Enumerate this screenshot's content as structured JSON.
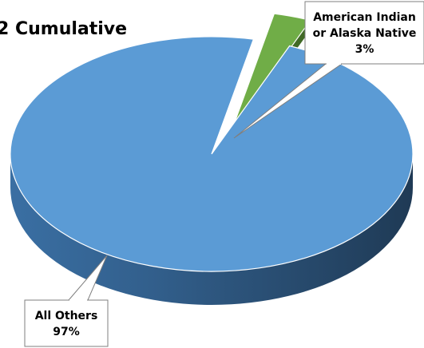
{
  "chart_data": {
    "type": "pie",
    "title": "2 Cumulative",
    "slices": [
      {
        "label_lines": [
          "American Indian",
          "or Alaska Native"
        ],
        "value_label": "3%",
        "value": 3,
        "color": "#70AD47"
      },
      {
        "label_lines": [
          "All Others"
        ],
        "value_label": "97%",
        "value": 97,
        "color": "#5B9BD5"
      }
    ],
    "style": "3d",
    "legend": "none"
  }
}
